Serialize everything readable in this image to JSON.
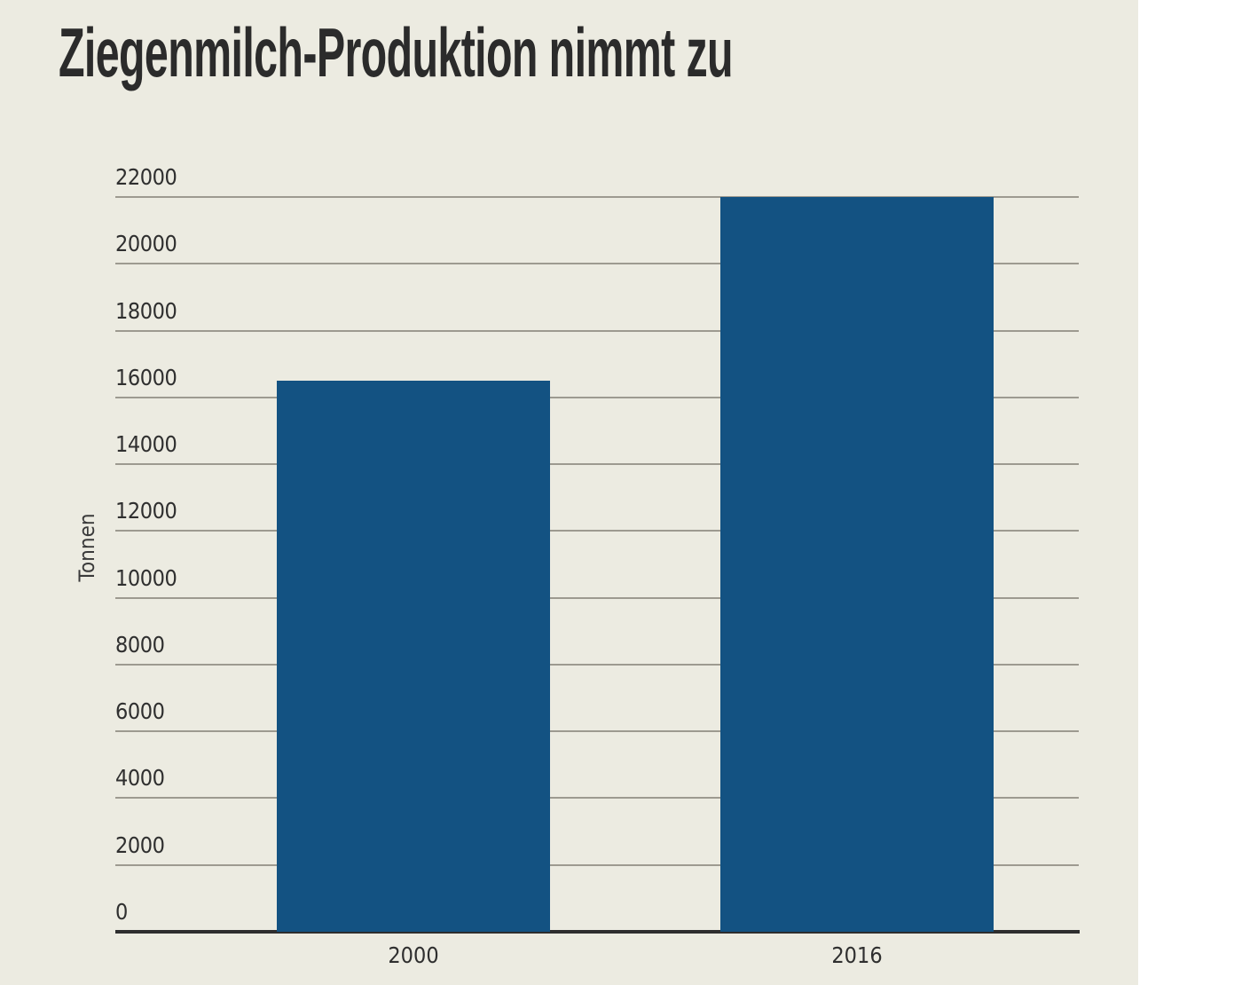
{
  "title": "Ziegenmilch-Produktion nimmt zu",
  "colors": {
    "background": "#ecebe1",
    "bar": "#135282",
    "gridline": "#9d9a90",
    "axis": "#2e2e2e",
    "text": "#2b2b2b"
  },
  "chart_data": {
    "type": "bar",
    "title": "Ziegenmilch-Produktion nimmt zu",
    "xlabel": "",
    "ylabel": "Tonnen",
    "categories": [
      "2000",
      "2016"
    ],
    "values": [
      16500,
      22000
    ],
    "ylim": [
      0,
      22000
    ],
    "yticks": [
      0,
      2000,
      4000,
      6000,
      8000,
      10000,
      12000,
      14000,
      16000,
      18000,
      20000,
      22000
    ],
    "grid": true,
    "legend": null
  }
}
